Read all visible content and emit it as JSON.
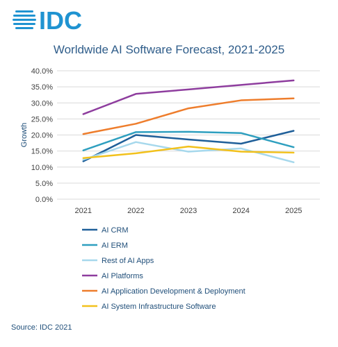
{
  "logo": {
    "text": "IDC",
    "color": "#1f93d1"
  },
  "source": "Source: IDC 2021",
  "chart_data": {
    "type": "line",
    "title": "Worldwide AI Software Forecast, 2021-2025",
    "ylabel": "Growth",
    "xlabel": "",
    "categories": [
      "2021",
      "2022",
      "2023",
      "2024",
      "2025"
    ],
    "yticks": [
      "0.0%",
      "5.0%",
      "10.0%",
      "15.0%",
      "20.0%",
      "25.0%",
      "30.0%",
      "35.0%",
      "40.0%"
    ],
    "ylim": [
      0,
      40
    ],
    "grid": true,
    "legend_position": "bottom",
    "series": [
      {
        "name": "AI CRM",
        "color": "#1f5f99",
        "values": [
          11.8,
          20.0,
          18.6,
          17.3,
          21.3
        ]
      },
      {
        "name": "AI ERM",
        "color": "#2e9fbf",
        "values": [
          15.2,
          20.9,
          21.0,
          20.6,
          16.2
        ]
      },
      {
        "name": "Rest of AI Apps",
        "color": "#a6d8ec",
        "values": [
          12.3,
          17.8,
          14.8,
          15.8,
          11.5
        ]
      },
      {
        "name": "AI Platforms",
        "color": "#8e3d9e",
        "values": [
          26.5,
          32.8,
          34.2,
          35.6,
          37.0
        ]
      },
      {
        "name": "AI Application Development & Deployment",
        "color": "#ee7d2c",
        "values": [
          20.3,
          23.5,
          28.3,
          30.8,
          31.4
        ]
      },
      {
        "name": "AI System Infrastructure Software",
        "color": "#f2c11c",
        "values": [
          12.8,
          14.3,
          16.4,
          14.8,
          14.5
        ]
      }
    ]
  }
}
